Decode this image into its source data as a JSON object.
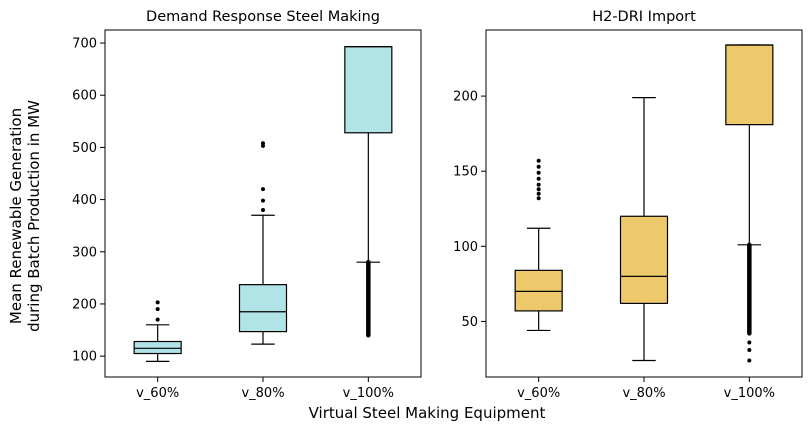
{
  "figure": {
    "ylabel_line1": "Mean Renewable Generation",
    "ylabel_line2": "during Batch Production in MW",
    "xlabel": "Virtual Steel Making Equipment"
  },
  "chart_data": [
    {
      "type": "box",
      "title": "Demand Response Steel Making",
      "categories": [
        "v_60%",
        "v_80%",
        "v_100%"
      ],
      "ylim": [
        60,
        725
      ],
      "yticks": [
        100,
        200,
        300,
        400,
        500,
        600,
        700
      ],
      "box_color": "#b0e4e6",
      "boxes": [
        {
          "category": "v_60%",
          "whisker_low": 90,
          "q1": 105,
          "median": 115,
          "q3": 128,
          "whisker_high": 160,
          "outliers": [
            170,
            190,
            203
          ]
        },
        {
          "category": "v_80%",
          "whisker_low": 123,
          "q1": 147,
          "median": 185,
          "q3": 237,
          "whisker_high": 370,
          "outliers": [
            380,
            398,
            420,
            503,
            508
          ]
        },
        {
          "category": "v_100%",
          "whisker_low": 280,
          "q1": 528,
          "median": 693,
          "q3": 693,
          "whisker_high": 693,
          "outliers_range": [
            140,
            280
          ]
        }
      ]
    },
    {
      "type": "box",
      "title": "H2-DRI Import",
      "categories": [
        "v_60%",
        "v_80%",
        "v_100%"
      ],
      "ylim": [
        13,
        244
      ],
      "yticks": [
        50,
        100,
        150,
        200
      ],
      "box_color": "#eec96b",
      "boxes": [
        {
          "category": "v_60%",
          "whisker_low": 44,
          "q1": 57,
          "median": 70,
          "q3": 84,
          "whisker_high": 112,
          "outliers": [
            132,
            135,
            138,
            141,
            145,
            149,
            153,
            157
          ]
        },
        {
          "category": "v_80%",
          "whisker_low": 24,
          "q1": 62,
          "median": 80,
          "q3": 120,
          "whisker_high": 199,
          "outliers": []
        },
        {
          "category": "v_100%",
          "whisker_low": 101,
          "q1": 181,
          "median": 234,
          "q3": 234,
          "whisker_high": 234,
          "outliers_range": [
            42,
            101
          ],
          "extra_outliers": [
            24,
            31,
            36
          ]
        }
      ]
    }
  ]
}
